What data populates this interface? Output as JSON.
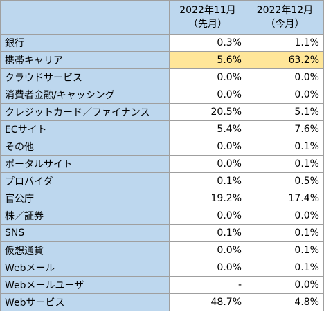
{
  "table": {
    "columns": [
      {
        "line1": "2022年11月",
        "line2": "（先月）"
      },
      {
        "line1": "2022年12月",
        "line2": "（今月）"
      }
    ],
    "rows": [
      {
        "label": "銀行",
        "v1": "0.3%",
        "v2": "1.1%"
      },
      {
        "label": "携帯キャリア",
        "v1": "5.6%",
        "v2": "63.2%",
        "highlight": true
      },
      {
        "label": "クラウドサービス",
        "v1": "0.0%",
        "v2": "0.0%"
      },
      {
        "label": "消費者金融/キャッシング",
        "v1": "0.0%",
        "v2": "0.0%"
      },
      {
        "label": "クレジットカード／ファイナンス",
        "v1": "20.5%",
        "v2": "5.1%"
      },
      {
        "label": "ECサイト",
        "v1": "5.4%",
        "v2": "7.6%"
      },
      {
        "label": "その他",
        "v1": "0.0%",
        "v2": "0.1%"
      },
      {
        "label": "ポータルサイト",
        "v1": "0.0%",
        "v2": "0.1%"
      },
      {
        "label": "プロバイダ",
        "v1": "0.1%",
        "v2": "0.5%"
      },
      {
        "label": "官公庁",
        "v1": "19.2%",
        "v2": "17.4%"
      },
      {
        "label": "株／証券",
        "v1": "0.0%",
        "v2": "0.0%"
      },
      {
        "label": "SNS",
        "v1": "0.1%",
        "v2": "0.1%"
      },
      {
        "label": "仮想通貨",
        "v1": "0.0%",
        "v2": "0.1%"
      },
      {
        "label": "Webメール",
        "v1": "0.0%",
        "v2": "0.1%"
      },
      {
        "label": "Webメールユーザ",
        "v1": "-",
        "v2": "0.0%"
      },
      {
        "label": "Webサービス",
        "v1": "48.7%",
        "v2": "4.8%"
      }
    ],
    "colors": {
      "header_bg": "#bdd7ee",
      "label_bg": "#bdd7ee",
      "highlight_bg": "#ffe699",
      "border": "#9f9f9f"
    }
  }
}
